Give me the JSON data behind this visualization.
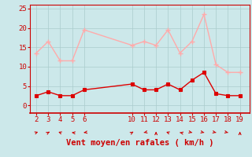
{
  "x": [
    2,
    3,
    4,
    5,
    6,
    10,
    11,
    12,
    13,
    14,
    15,
    16,
    17,
    18,
    19
  ],
  "wind_avg": [
    2.5,
    3.5,
    2.5,
    2.5,
    4.0,
    5.5,
    4.0,
    4.0,
    5.5,
    4.0,
    6.5,
    8.5,
    3.0,
    2.5,
    2.5
  ],
  "wind_gust": [
    13.5,
    16.5,
    11.5,
    11.5,
    19.5,
    15.5,
    16.5,
    15.5,
    19.5,
    13.5,
    16.5,
    23.5,
    10.5,
    8.5,
    8.5
  ],
  "avg_color": "#dd0000",
  "gust_color": "#ffaaaa",
  "bg_color": "#cce8ea",
  "grid_color": "#aacccc",
  "xlabel": "Vent moyen/en rafales ( km/h )",
  "xlim": [
    1.5,
    19.8
  ],
  "ylim": [
    -2,
    26
  ],
  "yticks": [
    0,
    5,
    10,
    15,
    20,
    25
  ],
  "xticks": [
    2,
    3,
    4,
    5,
    6,
    10,
    11,
    12,
    13,
    14,
    15,
    16,
    17,
    18,
    19
  ],
  "axis_color": "#cc0000",
  "tick_fontsize": 6.5,
  "xlabel_fontsize": 7.5,
  "arrow_angles": [
    45,
    30,
    315,
    290,
    250,
    30,
    240,
    0,
    315,
    300,
    120,
    120,
    120,
    120,
    0
  ]
}
